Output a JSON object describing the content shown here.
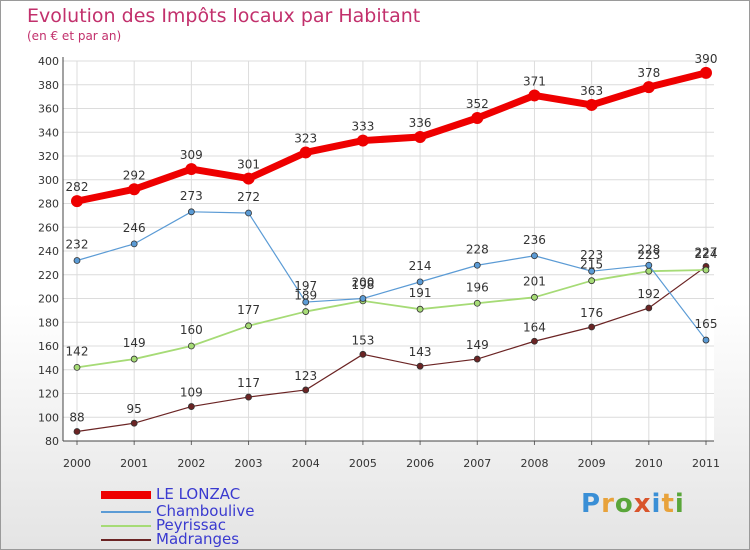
{
  "header": {
    "title": "Evolution des Impôts locaux par Habitant",
    "subtitle": "(en € et par an)"
  },
  "logo": {
    "letters": [
      "P",
      "r",
      "o",
      "x",
      "i",
      "t",
      "i"
    ],
    "colors": [
      "#3a8fd6",
      "#e8a23a",
      "#5aa63a",
      "#d9542b",
      "#3a8fd6",
      "#e8a23a",
      "#5aa63a"
    ]
  },
  "chart_data": {
    "type": "line",
    "x": [
      "2000",
      "2001",
      "2002",
      "2003",
      "2004",
      "2005",
      "2006",
      "2007",
      "2008",
      "2009",
      "2010",
      "2011"
    ],
    "ylim": [
      80,
      400
    ],
    "yticks": [
      80,
      100,
      120,
      140,
      160,
      180,
      200,
      220,
      240,
      260,
      280,
      300,
      320,
      340,
      360,
      380,
      400
    ],
    "grid": true,
    "legend_position": "bottom-left",
    "series": [
      {
        "name": "LE LONZAC",
        "color": "#ee0000",
        "width": 7,
        "marker": 6,
        "values": [
          282,
          292,
          309,
          301,
          323,
          333,
          336,
          352,
          371,
          363,
          378,
          390
        ],
        "labels": [
          "282",
          "292",
          "309",
          "301",
          "323",
          "333",
          "336",
          "352",
          "371",
          "363",
          "378",
          "390"
        ]
      },
      {
        "name": "Chamboulive",
        "color": "#5b9bd5",
        "width": 1.2,
        "marker": 3,
        "values": [
          232,
          246,
          273,
          272,
          197,
          200,
          214,
          228,
          236,
          223,
          228,
          165
        ],
        "labels": [
          "232",
          "246",
          "273",
          "272",
          "197",
          "200",
          "214",
          "228",
          "236",
          "223",
          "228",
          "165"
        ]
      },
      {
        "name": "Peyrissac",
        "color": "#a6db76",
        "width": 1.8,
        "marker": 3,
        "values": [
          142,
          149,
          160,
          177,
          189,
          198,
          191,
          196,
          201,
          215,
          223,
          224
        ],
        "labels": [
          "142",
          "149",
          "160",
          "177",
          "189",
          "198",
          "191",
          "196",
          "201",
          "215",
          "223",
          "224"
        ]
      },
      {
        "name": "Madranges",
        "color": "#6b2424",
        "width": 1.2,
        "marker": 3,
        "values": [
          88,
          95,
          109,
          117,
          123,
          153,
          143,
          149,
          164,
          176,
          192,
          227
        ],
        "labels": [
          "88",
          "95",
          "109",
          "117",
          "123",
          "153",
          "143",
          "149",
          "164",
          "176",
          "192",
          "227"
        ]
      }
    ]
  }
}
